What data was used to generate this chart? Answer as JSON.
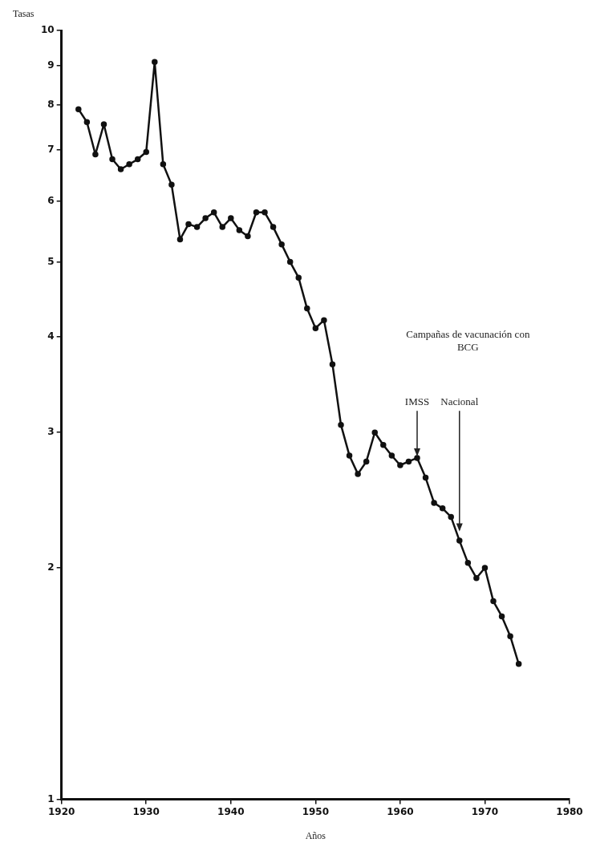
{
  "chart_data": {
    "type": "line",
    "xlabel": "Años",
    "ylabel": "Tasas",
    "log": "y",
    "grid": false,
    "legend": false,
    "marker": "circle",
    "line_style": "solid",
    "x": [
      1922,
      1923,
      1924,
      1925,
      1926,
      1927,
      1928,
      1929,
      1930,
      1931,
      1932,
      1933,
      1934,
      1935,
      1936,
      1937,
      1938,
      1939,
      1940,
      1941,
      1942,
      1943,
      1944,
      1945,
      1946,
      1947,
      1948,
      1949,
      1950,
      1951,
      1952,
      1953,
      1954,
      1955,
      1956,
      1957,
      1958,
      1959,
      1960,
      1961,
      1962,
      1963,
      1964,
      1965,
      1966,
      1967,
      1968,
      1969,
      1970,
      1971,
      1972,
      1973,
      1974
    ],
    "series": [
      {
        "color": "#111111",
        "values": [
          7.9,
          7.6,
          6.9,
          7.55,
          6.8,
          6.6,
          6.7,
          6.8,
          6.95,
          9.1,
          6.7,
          6.3,
          5.35,
          5.6,
          5.55,
          5.7,
          5.8,
          5.55,
          5.7,
          5.5,
          5.4,
          5.8,
          5.8,
          5.55,
          5.27,
          5.0,
          4.77,
          4.35,
          4.1,
          4.2,
          3.68,
          3.07,
          2.8,
          2.65,
          2.75,
          3.0,
          2.89,
          2.8,
          2.72,
          2.75,
          2.78,
          2.62,
          2.43,
          2.39,
          2.33,
          2.17,
          2.03,
          1.94,
          2.0,
          1.81,
          1.73,
          1.63,
          1.5
        ]
      }
    ],
    "xlim": [
      1920,
      1980
    ],
    "xticks": [
      1920,
      1930,
      1940,
      1950,
      1960,
      1970,
      1980
    ],
    "ylim": [
      1,
      10
    ],
    "yticks": [
      1,
      2,
      3,
      4,
      5,
      6,
      7,
      8,
      9,
      10
    ],
    "annotations": [
      "Campañas de vacunación con BCG",
      {
        "text": "IMSS",
        "x": 1962,
        "y": 2.78
      },
      {
        "text": "Nacional",
        "x": 1967,
        "y": 2.22
      }
    ]
  }
}
